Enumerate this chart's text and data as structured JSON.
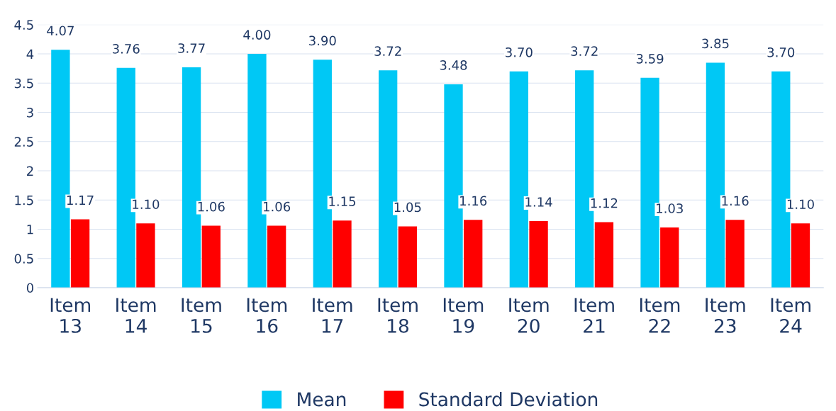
{
  "chart_data": {
    "type": "bar",
    "categories": [
      "Item 13",
      "Item 14",
      "Item 15",
      "Item 16",
      "Item 17",
      "Item 18",
      "Item 19",
      "Item 20",
      "Item 21",
      "Item 22",
      "Item 23",
      "Item 24"
    ],
    "series": [
      {
        "name": "Mean",
        "color": "#00c8f5",
        "values": [
          4.07,
          3.76,
          3.77,
          4.0,
          3.9,
          3.72,
          3.48,
          3.7,
          3.72,
          3.59,
          3.85,
          3.7
        ],
        "value_labels": [
          "4.07",
          "3.76",
          "3.77",
          "4.00",
          "3.90",
          "3.72",
          "3.48",
          "3.70",
          "3.72",
          "3.59",
          "3.85",
          "3.70"
        ]
      },
      {
        "name": "Standard Deviation",
        "color": "#ff0000",
        "values": [
          1.17,
          1.1,
          1.06,
          1.06,
          1.15,
          1.05,
          1.16,
          1.14,
          1.12,
          1.03,
          1.16,
          1.1
        ],
        "value_labels": [
          "1.17",
          "1.10",
          "1.06",
          "1.06",
          "1.15",
          "1.05",
          "1.16",
          "1.14",
          "1.12",
          "1.03",
          "1.16",
          "1.10"
        ]
      }
    ],
    "ylim": [
      0,
      4.5
    ],
    "yticks": [
      0,
      0.5,
      1,
      1.5,
      2,
      2.5,
      3,
      3.5,
      4,
      4.5
    ],
    "grid": "y",
    "legend": "bottom"
  }
}
